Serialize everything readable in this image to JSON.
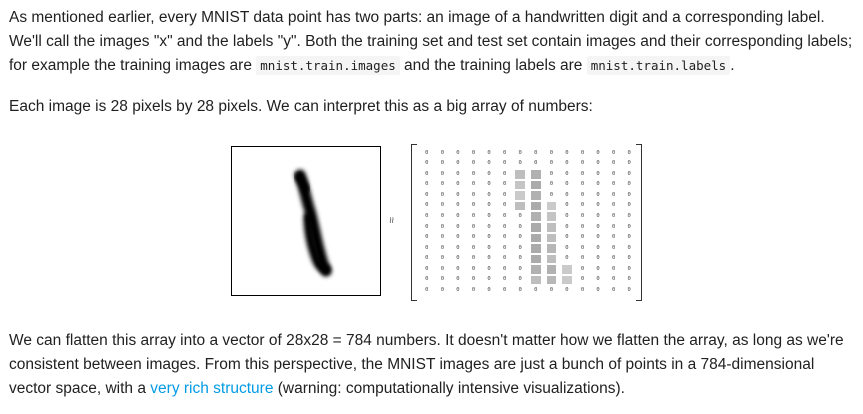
{
  "paragraph1": {
    "part1": "As mentioned earlier, every MNIST data point has two parts: an image of a handwritten digit and a corresponding label. We'll call the images \"x\" and the labels \"y\". Both the training set and test set contain images and their corresponding labels; for example the training images are ",
    "code1": "mnist.train.images",
    "part2": " and the training labels are ",
    "code2": "mnist.train.labels",
    "part3": "."
  },
  "paragraph2": "Each image is 28 pixels by 28 pixels. We can interpret this as a big array of numbers:",
  "figure": {
    "approx_symbol": "≈",
    "cell_zero": "0",
    "ink_color": "#000000",
    "matrix_gray": "#9e9e9e"
  },
  "paragraph3": {
    "part1": "We can flatten this array into a vector of 28x28 = 784 numbers. It doesn't matter how we flatten the array, as long as we're consistent between images. From this perspective, the MNIST images are just a bunch of points in a 784-dimensional vector space, with a ",
    "link": "very rich structure",
    "part2": " (warning: computationally intensive visualizations)."
  }
}
